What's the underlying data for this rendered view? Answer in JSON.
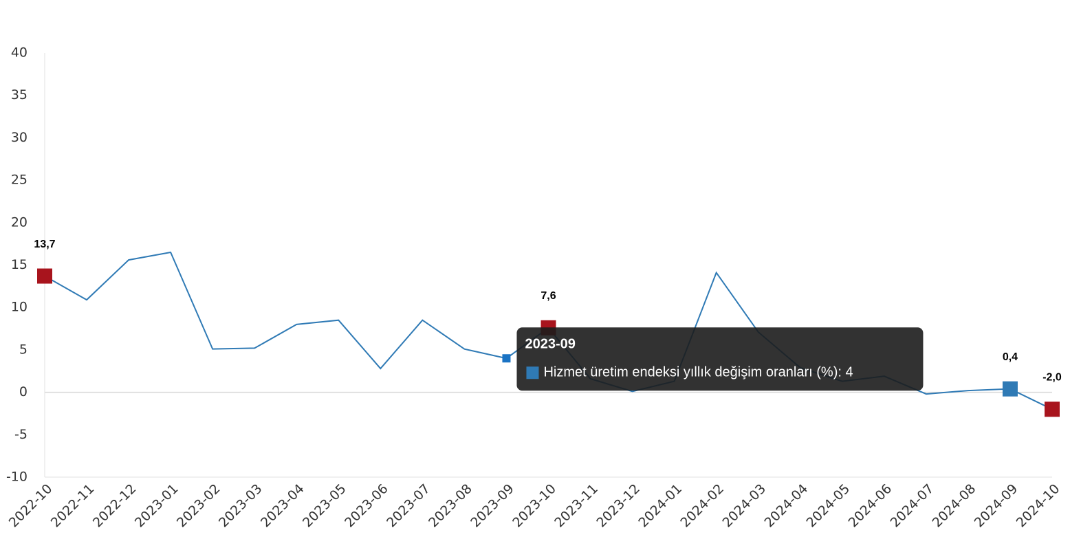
{
  "chart_data": {
    "type": "line",
    "categories": [
      "2022-10",
      "2022-11",
      "2022-12",
      "2023-01",
      "2023-02",
      "2023-03",
      "2023-04",
      "2023-05",
      "2023-06",
      "2023-07",
      "2023-08",
      "2023-09",
      "2023-10",
      "2023-11",
      "2023-12",
      "2024-01",
      "2024-02",
      "2024-03",
      "2024-04",
      "2024-05",
      "2024-06",
      "2024-07",
      "2024-08",
      "2024-09",
      "2024-10"
    ],
    "series": [
      {
        "name": "Hizmet üretim endeksi yıllık değişim oranları (%)",
        "color": "#2f7ab5",
        "values": [
          13.7,
          10.9,
          15.6,
          16.5,
          5.1,
          5.2,
          8.0,
          8.5,
          2.8,
          8.5,
          5.1,
          4,
          7.6,
          1.6,
          0.1,
          1.3,
          14.1,
          7.1,
          2.9,
          1.3,
          1.9,
          -0.2,
          0.2,
          0.4,
          -2.0
        ],
        "value_labels": [
          "13,7",
          null,
          null,
          null,
          null,
          null,
          null,
          null,
          null,
          null,
          null,
          null,
          "7,6",
          null,
          null,
          null,
          null,
          null,
          null,
          null,
          null,
          null,
          null,
          "0,4",
          "-2,0"
        ],
        "point_colors": [
          "#a8141d",
          null,
          null,
          null,
          null,
          null,
          null,
          null,
          null,
          null,
          null,
          null,
          "#a8141d",
          null,
          null,
          null,
          null,
          null,
          null,
          null,
          null,
          null,
          null,
          "#2f7ab5",
          "#a8141d"
        ]
      }
    ],
    "ylim": [
      -10,
      40
    ],
    "yticks": [
      -10,
      -5,
      0,
      5,
      10,
      15,
      20,
      25,
      30,
      35,
      40
    ],
    "tooltip": {
      "title": "2023-09",
      "text": "Hizmet üretim endeksi yıllık değişim oranları (%): 4"
    }
  }
}
